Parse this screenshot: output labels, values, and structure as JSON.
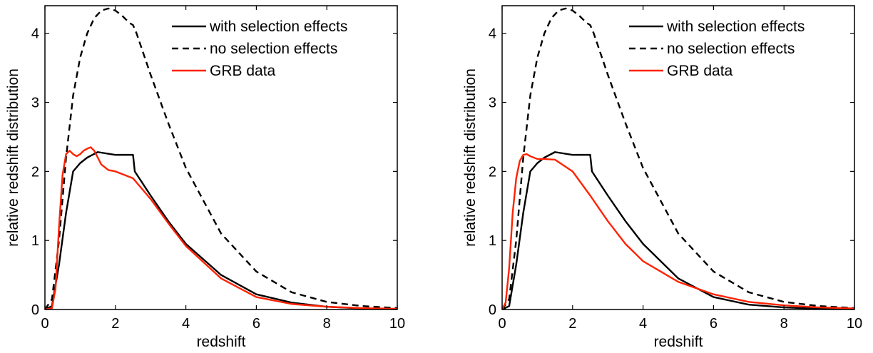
{
  "chart_data": [
    {
      "type": "line",
      "xlabel": "redshift",
      "ylabel": "relative redshift distribution",
      "xlim": [
        0,
        10
      ],
      "ylim": [
        0,
        4.4
      ],
      "xticks": [
        "0",
        "2",
        "4",
        "6",
        "8",
        "10"
      ],
      "yticks": [
        "0",
        "1",
        "2",
        "3",
        "4"
      ],
      "legend_position": "top-right",
      "series": [
        {
          "name": "with selection effects",
          "color": "#000000",
          "style": "solid",
          "x": [
            0,
            0.2,
            0.4,
            0.6,
            0.8,
            1.0,
            1.2,
            1.5,
            2.0,
            2.5,
            2.55,
            3.0,
            3.5,
            4.0,
            5.0,
            6.0,
            7.0,
            8.0,
            9.0,
            10.0
          ],
          "y": [
            0,
            0.05,
            0.65,
            1.4,
            2.0,
            2.12,
            2.2,
            2.28,
            2.24,
            2.24,
            2.0,
            1.65,
            1.28,
            0.95,
            0.5,
            0.22,
            0.1,
            0.04,
            0.015,
            0.005
          ]
        },
        {
          "name": "no selection effects",
          "color": "#000000",
          "style": "dashed",
          "x": [
            0,
            0.2,
            0.4,
            0.6,
            0.8,
            1.0,
            1.2,
            1.4,
            1.6,
            1.8,
            2.0,
            2.2,
            2.4,
            2.5,
            2.6,
            3.0,
            3.5,
            4.0,
            5.0,
            6.0,
            7.0,
            8.0,
            9.0,
            10.0
          ],
          "y": [
            0,
            0.15,
            1.0,
            2.2,
            3.1,
            3.65,
            4.0,
            4.22,
            4.33,
            4.36,
            4.33,
            4.25,
            4.15,
            4.12,
            4.0,
            3.4,
            2.7,
            2.05,
            1.1,
            0.55,
            0.25,
            0.11,
            0.05,
            0.02
          ]
        },
        {
          "name": "GRB data",
          "color": "#ff2200",
          "style": "solid",
          "x": [
            0,
            0.2,
            0.3,
            0.4,
            0.5,
            0.6,
            0.7,
            0.8,
            0.9,
            1.0,
            1.1,
            1.2,
            1.3,
            1.4,
            1.5,
            1.6,
            1.8,
            2.0,
            2.5,
            3.0,
            3.5,
            4.0,
            5.0,
            6.0,
            7.0,
            8.0,
            9.0,
            10.0
          ],
          "y": [
            0,
            0.02,
            0.3,
            1.2,
            1.95,
            2.25,
            2.3,
            2.25,
            2.22,
            2.25,
            2.3,
            2.33,
            2.35,
            2.3,
            2.2,
            2.1,
            2.02,
            2.0,
            1.9,
            1.6,
            1.25,
            0.92,
            0.45,
            0.18,
            0.08,
            0.04,
            0.02,
            0.01
          ]
        }
      ]
    },
    {
      "type": "line",
      "xlabel": "redshift",
      "ylabel": "relative redshift distribution",
      "xlim": [
        0,
        10
      ],
      "ylim": [
        0,
        4.4
      ],
      "xticks": [
        "0",
        "2",
        "4",
        "6",
        "8",
        "10"
      ],
      "yticks": [
        "0",
        "1",
        "2",
        "3",
        "4"
      ],
      "legend_position": "top-right",
      "series": [
        {
          "name": "with selection effects",
          "color": "#000000",
          "style": "solid",
          "x": [
            0,
            0.2,
            0.4,
            0.6,
            0.8,
            1.0,
            1.2,
            1.5,
            2.0,
            2.5,
            2.55,
            3.0,
            3.5,
            4.0,
            5.0,
            6.0,
            7.0,
            8.0,
            9.0,
            10.0
          ],
          "y": [
            0,
            0.05,
            0.65,
            1.4,
            2.0,
            2.12,
            2.2,
            2.28,
            2.24,
            2.24,
            2.0,
            1.65,
            1.28,
            0.95,
            0.45,
            0.18,
            0.07,
            0.03,
            0.01,
            0.005
          ]
        },
        {
          "name": "no selection effects",
          "color": "#000000",
          "style": "dashed",
          "x": [
            0,
            0.2,
            0.4,
            0.6,
            0.8,
            1.0,
            1.2,
            1.4,
            1.6,
            1.8,
            2.0,
            2.2,
            2.4,
            2.5,
            2.6,
            3.0,
            3.5,
            4.0,
            5.0,
            6.0,
            7.0,
            8.0,
            9.0,
            10.0
          ],
          "y": [
            0,
            0.15,
            1.0,
            2.2,
            3.1,
            3.65,
            4.0,
            4.22,
            4.33,
            4.36,
            4.33,
            4.25,
            4.15,
            4.12,
            4.0,
            3.4,
            2.7,
            2.05,
            1.1,
            0.55,
            0.25,
            0.11,
            0.05,
            0.02
          ]
        },
        {
          "name": "GRB data",
          "color": "#ff2200",
          "style": "solid",
          "x": [
            0,
            0.1,
            0.2,
            0.3,
            0.4,
            0.5,
            0.6,
            0.7,
            0.8,
            1.0,
            1.2,
            1.5,
            2.0,
            2.5,
            3.0,
            3.5,
            4.0,
            5.0,
            6.0,
            7.0,
            8.0,
            9.0,
            10.0
          ],
          "y": [
            0,
            0.1,
            0.6,
            1.4,
            1.9,
            2.15,
            2.24,
            2.25,
            2.22,
            2.18,
            2.18,
            2.17,
            2.0,
            1.65,
            1.28,
            0.95,
            0.7,
            0.4,
            0.22,
            0.11,
            0.06,
            0.03,
            0.015
          ]
        }
      ]
    }
  ]
}
